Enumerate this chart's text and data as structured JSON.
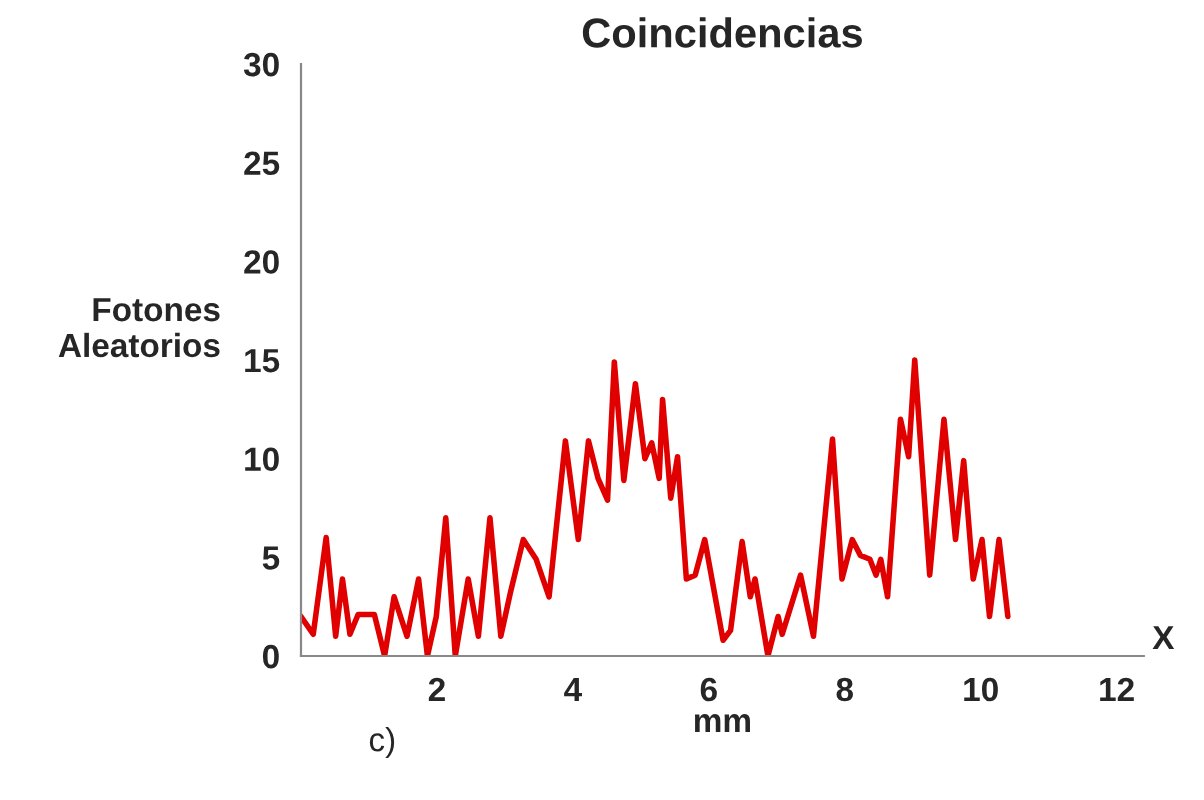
{
  "chart_data": {
    "type": "line",
    "title": "Coincidencias",
    "xlabel": "mm",
    "ylabel": "Fotones\nAleatorios",
    "annotations": [
      "X",
      "c)"
    ],
    "series": [
      {
        "color": "#e00000",
        "x": [
          0.0,
          0.18,
          0.37,
          0.51,
          0.61,
          0.72,
          0.84,
          1.08,
          1.23,
          1.37,
          1.56,
          1.73,
          1.86,
          1.99,
          2.13,
          2.27,
          2.46,
          2.61,
          2.78,
          2.94,
          3.08,
          3.27,
          3.46,
          3.65,
          3.89,
          4.08,
          4.23,
          4.37,
          4.51,
          4.61,
          4.75,
          4.92,
          5.06,
          5.16,
          5.27,
          5.32,
          5.44,
          5.54,
          5.67,
          5.8,
          5.94,
          6.21,
          6.32,
          6.49,
          6.61,
          6.68,
          6.87,
          7.02,
          7.08,
          7.35,
          7.54,
          7.82,
          7.96,
          8.11,
          8.23,
          8.37,
          8.46,
          8.53,
          8.63,
          8.82,
          8.94,
          9.03,
          9.25,
          9.46,
          9.63,
          9.75,
          9.89,
          10.02,
          10.13,
          10.27,
          10.4
        ],
        "values": [
          2.0,
          1.1,
          6.0,
          1.0,
          3.9,
          1.1,
          2.1,
          2.1,
          0,
          3.0,
          1.0,
          3.9,
          0,
          2.0,
          7.0,
          0,
          3.9,
          1.0,
          7.0,
          1.0,
          3.2,
          5.9,
          4.9,
          3.0,
          10.9,
          5.9,
          10.9,
          9.0,
          7.9,
          14.9,
          8.9,
          13.8,
          10.0,
          10.8,
          9.0,
          13.0,
          8.0,
          10.1,
          3.9,
          4.1,
          5.9,
          0.8,
          1.3,
          5.8,
          3.0,
          3.9,
          0,
          2.0,
          1.1,
          4.1,
          1.0,
          11.0,
          3.9,
          5.9,
          5.1,
          4.9,
          4.1,
          4.9,
          3.0,
          12.0,
          10.1,
          15.0,
          4.1,
          12.0,
          5.9,
          9.9,
          3.9,
          5.9,
          2.0,
          5.9,
          2.0
        ]
      }
    ],
    "xlim": [
      0,
      12.4
    ],
    "xticks": [
      2,
      4,
      6,
      8,
      10,
      12
    ],
    "ylim": [
      0,
      30
    ],
    "yticks": [
      0,
      5,
      10,
      15,
      20,
      25,
      30
    ],
    "grid": false
  }
}
